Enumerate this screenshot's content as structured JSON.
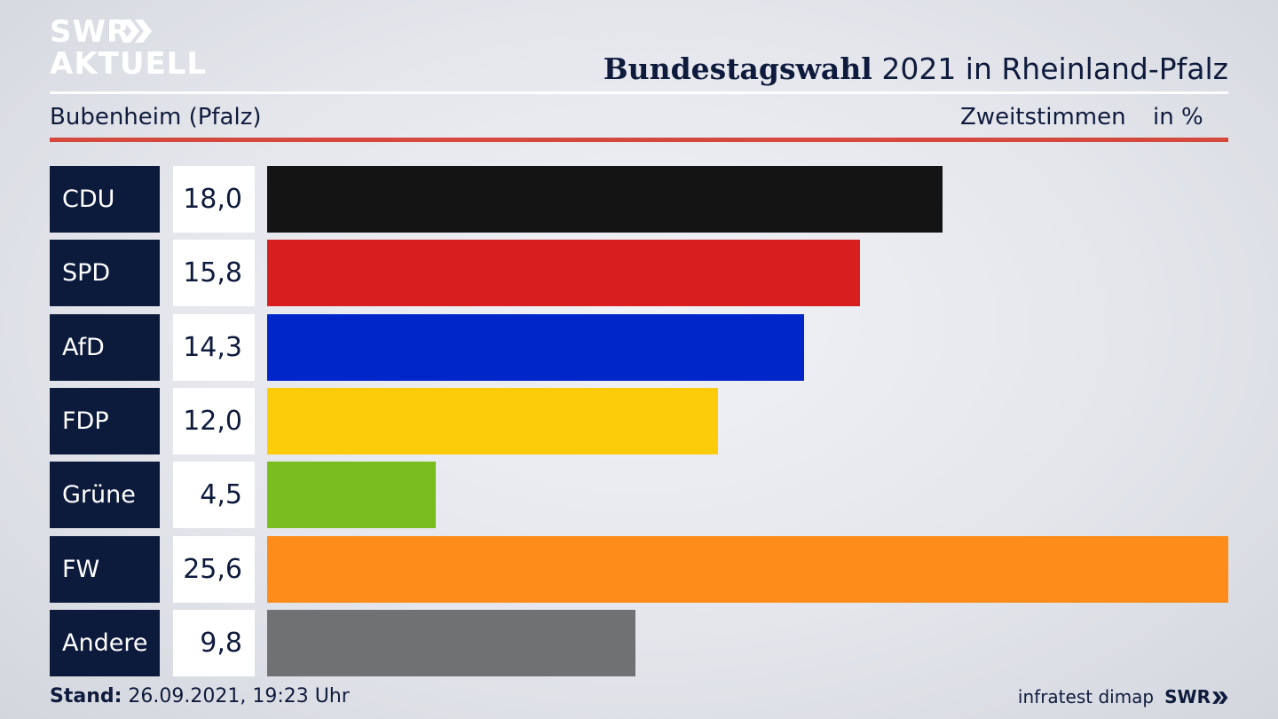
{
  "header": {
    "logo_line1": "SWR",
    "logo_line2": "AKTUELL",
    "title_bold": "Bundestagswahl",
    "title_rest": " 2021 in Rheinland-Pfalz",
    "region": "Bubenheim (Pfalz)",
    "metric": "Zweitstimmen",
    "unit": "in %"
  },
  "chart_data": {
    "type": "bar",
    "orientation": "horizontal",
    "title": "Bundestagswahl 2021 in Rheinland-Pfalz",
    "subtitle": "Bubenheim (Pfalz)",
    "ylabel": "Zweitstimmen in %",
    "categories": [
      "CDU",
      "SPD",
      "AfD",
      "FDP",
      "Grüne",
      "FW",
      "Andere"
    ],
    "values": [
      18.0,
      15.8,
      14.3,
      12.0,
      4.5,
      25.6,
      9.8
    ],
    "value_labels": [
      "18,0",
      "15,8",
      "14,3",
      "12,0",
      "4,5",
      "25,6",
      "9,8"
    ],
    "colors": [
      "#141414",
      "#d81f20",
      "#0025c8",
      "#fccc0a",
      "#79be1e",
      "#fd8c1a",
      "#707173"
    ],
    "xlim": [
      0,
      25.6
    ]
  },
  "footer": {
    "stand_label": "Stand:",
    "stand_value": " 26.09.2021, 19:23 Uhr",
    "source": "infratest dimap",
    "brand": "SWR"
  }
}
